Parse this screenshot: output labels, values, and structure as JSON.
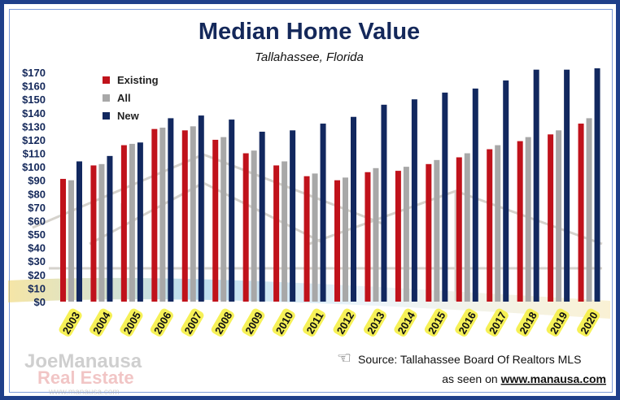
{
  "chart_data": {
    "type": "bar",
    "title": "Median Home Value",
    "subtitle": "Tallahassee, Florida",
    "categories": [
      "2003",
      "2004",
      "2005",
      "2006",
      "2007",
      "2008",
      "2009",
      "2010",
      "2011",
      "2012",
      "2013",
      "2014",
      "2015",
      "2016",
      "2017",
      "2018",
      "2019",
      "2020"
    ],
    "series": [
      {
        "name": "Existing",
        "color": "#c0121b",
        "values": [
          91,
          101,
          116,
          128,
          127,
          120,
          110,
          101,
          93,
          90,
          96,
          97,
          102,
          107,
          113,
          119,
          124,
          132
        ]
      },
      {
        "name": "All",
        "color": "#a8a8a8",
        "values": [
          90,
          102,
          117,
          129,
          130,
          122,
          112,
          104,
          95,
          92,
          99,
          100,
          105,
          110,
          116,
          122,
          127,
          136
        ]
      },
      {
        "name": "New",
        "color": "#12285f",
        "values": [
          104,
          108,
          118,
          136,
          138,
          135,
          126,
          127,
          132,
          137,
          146,
          150,
          155,
          158,
          164,
          172,
          172,
          173
        ]
      }
    ],
    "ylim": [
      0,
      170
    ],
    "yticks": [
      "$0",
      "$10",
      "$20",
      "$30",
      "$40",
      "$50",
      "$60",
      "$70",
      "$80",
      "$90",
      "$100",
      "$110",
      "$120",
      "$130",
      "$140",
      "$150",
      "$160",
      "$170"
    ],
    "legend_position": "top-left",
    "grid": false
  },
  "source": {
    "text": "Source: Tallahassee Board Of Realtors MLS",
    "seen_prefix": "as seen on ",
    "url": "www.manausa.com"
  },
  "logo": {
    "line1": "JoeManausa",
    "line2": "Real Estate",
    "line3": "www.manausa.com"
  }
}
